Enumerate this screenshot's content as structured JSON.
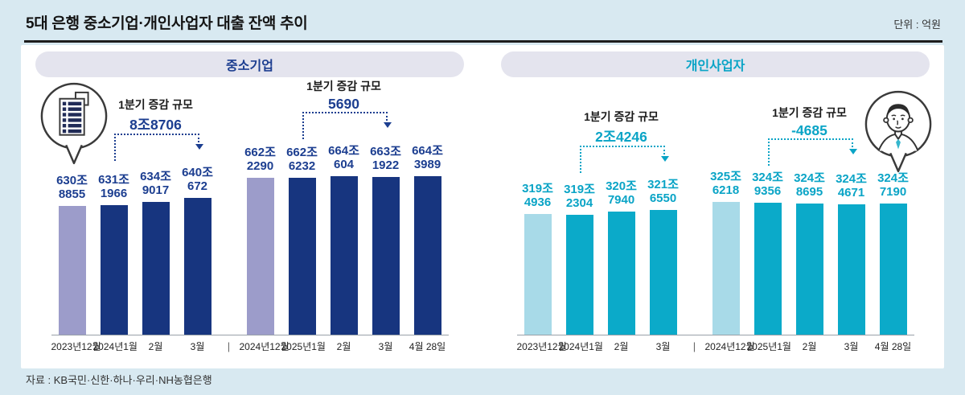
{
  "header": {
    "title": "5대 은행 중소기업·개인사업자 대출 잔액 추이",
    "unit": "단위 : 억원"
  },
  "footer": {
    "source": "자료 : KB국민·신한·하나·우리·NH농협은행"
  },
  "chart_data": [
    {
      "type": "bar",
      "badge": "중소기업",
      "icon": "building-speech-bubble-icon",
      "accent": "#1c3e90",
      "bar_color": "#17357f",
      "muted_bar_color": "#9c9cca",
      "ylim": [
        4850000,
        7700000
      ],
      "value_unit": "억원",
      "groups": [
        {
          "annotation": {
            "label": "1분기 증감 규모",
            "value": "8조8706",
            "from": 1,
            "to": 3
          },
          "bars": [
            {
              "x": "2023년12월",
              "label_top": "630조",
              "label_bottom": "8855",
              "value": 6308855,
              "muted": true
            },
            {
              "x": "2024년1월",
              "label_top": "631조",
              "label_bottom": "1966",
              "value": 6311966
            },
            {
              "x": "2월",
              "label_top": "634조",
              "label_bottom": "9017",
              "value": 6349017
            },
            {
              "x": "3월",
              "label_top": "640조",
              "label_bottom": "672",
              "value": 6400672
            }
          ]
        },
        {
          "annotation": {
            "label": "1분기 증감 규모",
            "value": "5690",
            "from": 1,
            "to": 3
          },
          "bars": [
            {
              "x": "2024년12월",
              "label_top": "662조",
              "label_bottom": "2290",
              "value": 6622290,
              "muted": true
            },
            {
              "x": "2025년1월",
              "label_top": "662조",
              "label_bottom": "6232",
              "value": 6626232
            },
            {
              "x": "2월",
              "label_top": "664조",
              "label_bottom": "604",
              "value": 6640604
            },
            {
              "x": "3월",
              "label_top": "663조",
              "label_bottom": "1922",
              "value": 6631922
            },
            {
              "x": "4월 28일",
              "label_top": "664조",
              "label_bottom": "3989",
              "value": 6643989
            }
          ]
        }
      ]
    },
    {
      "type": "bar",
      "badge": "개인사업자",
      "icon": "businessman-speech-bubble-icon",
      "accent": "#0aa4c6",
      "bar_color": "#0baac9",
      "muted_bar_color": "#a8dae8",
      "ylim": [
        2595000,
        3847000
      ],
      "value_unit": "억원",
      "groups": [
        {
          "annotation": {
            "label": "1분기 증감 규모",
            "value": "2조4246",
            "from": 1,
            "to": 3
          },
          "bars": [
            {
              "x": "2023년12월",
              "label_top": "319조",
              "label_bottom": "4936",
              "value": 3194936,
              "muted": true
            },
            {
              "x": "2024년1월",
              "label_top": "319조",
              "label_bottom": "2304",
              "value": 3192304
            },
            {
              "x": "2월",
              "label_top": "320조",
              "label_bottom": "7940",
              "value": 3207940
            },
            {
              "x": "3월",
              "label_top": "321조",
              "label_bottom": "6550",
              "value": 3216550
            }
          ]
        },
        {
          "annotation": {
            "label": "1분기 증감 규모",
            "value": "-4685",
            "from": 1,
            "to": 3
          },
          "bars": [
            {
              "x": "2024년12월",
              "label_top": "325조",
              "label_bottom": "6218",
              "value": 3256218,
              "muted": true
            },
            {
              "x": "2025년1월",
              "label_top": "324조",
              "label_bottom": "9356",
              "value": 3249356
            },
            {
              "x": "2월",
              "label_top": "324조",
              "label_bottom": "8695",
              "value": 3248695
            },
            {
              "x": "3월",
              "label_top": "324조",
              "label_bottom": "4671",
              "value": 3244671
            },
            {
              "x": "4월 28일",
              "label_top": "324조",
              "label_bottom": "7190",
              "value": 3247190
            }
          ]
        }
      ]
    }
  ]
}
